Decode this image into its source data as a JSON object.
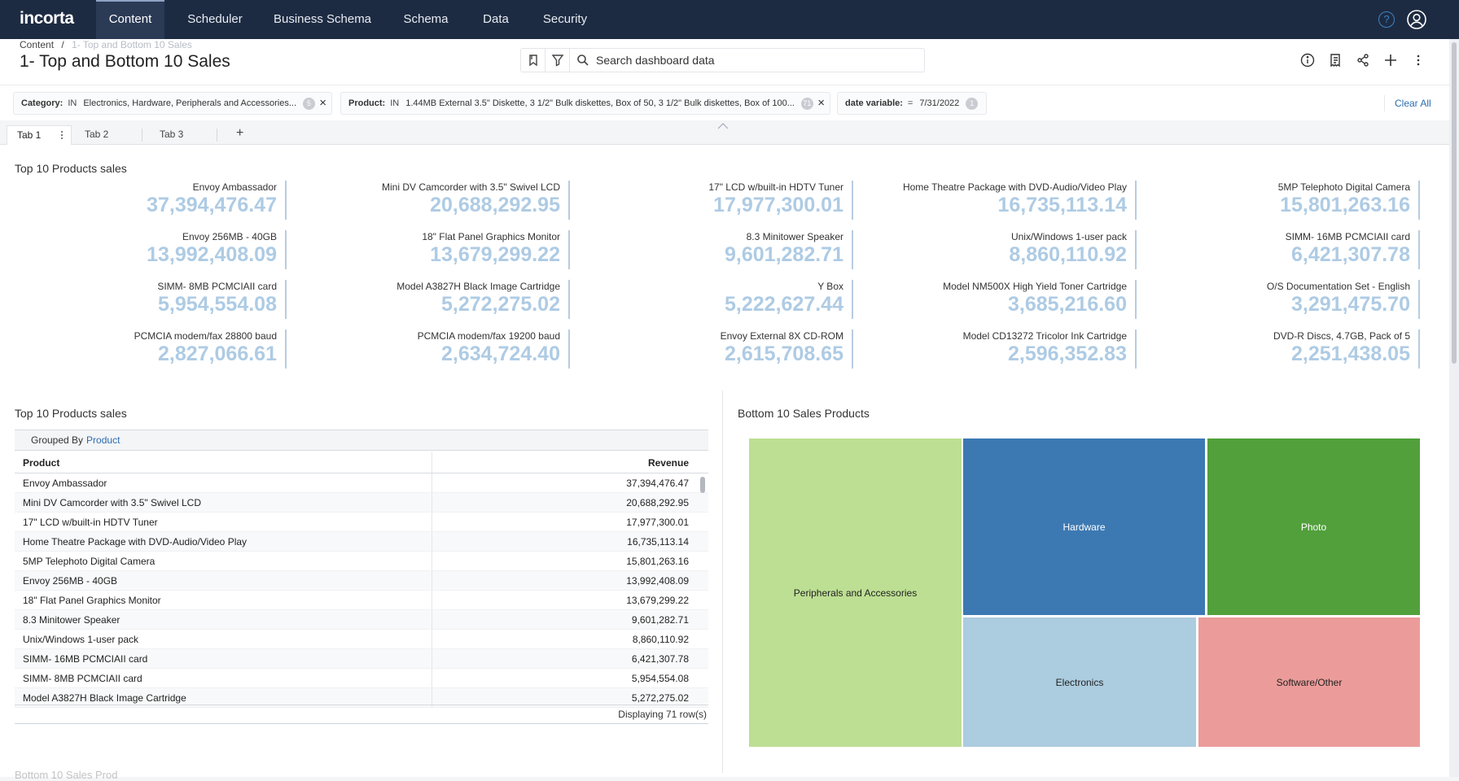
{
  "nav": {
    "logo": "incorta",
    "tabs": [
      "Content",
      "Scheduler",
      "Business Schema",
      "Schema",
      "Data",
      "Security"
    ],
    "active_tab": "Content",
    "help_symbol": "?"
  },
  "header": {
    "breadcrumb_root": "Content",
    "breadcrumb_sep": "/",
    "breadcrumb_current": "1- Top and Bottom 10 Sales",
    "title": "1- Top and Bottom 10 Sales",
    "search_placeholder": "Search dashboard data",
    "toolbar_icons": [
      "info-icon",
      "notes-icon",
      "share-icon",
      "add-icon",
      "more-icon"
    ]
  },
  "filters": [
    {
      "field": "Category:",
      "op": "IN",
      "value": "Electronics, Hardware, Peripherals and Accessories...",
      "count": "5"
    },
    {
      "field": "Product:",
      "op": "IN",
      "value": "1.44MB External 3.5\" Diskette, 3 1/2\" Bulk diskettes, Box of 50, 3 1/2\" Bulk diskettes, Box of 100...",
      "count": "71"
    },
    {
      "field": "date variable:",
      "op": "=",
      "value": "7/31/2022",
      "count": "1"
    }
  ],
  "clear_all": "Clear All",
  "tabs": [
    "Tab 1",
    "Tab 2",
    "Tab 3"
  ],
  "add_tab": "+",
  "kpi_section": {
    "title": "Top 10 Products sales",
    "items": [
      {
        "label": "Envoy Ambassador",
        "value": "37,394,476.47"
      },
      {
        "label": "Mini DV Camcorder with 3.5\" Swivel LCD",
        "value": "20,688,292.95"
      },
      {
        "label": "17\" LCD w/built-in HDTV Tuner",
        "value": "17,977,300.01"
      },
      {
        "label": "Home Theatre Package with DVD-Audio/Video Play",
        "value": "16,735,113.14"
      },
      {
        "label": "5MP Telephoto Digital Camera",
        "value": "15,801,263.16"
      },
      {
        "label": "Envoy 256MB - 40GB",
        "value": "13,992,408.09"
      },
      {
        "label": "18\" Flat Panel Graphics Monitor",
        "value": "13,679,299.22"
      },
      {
        "label": "8.3 Minitower Speaker",
        "value": "9,601,282.71"
      },
      {
        "label": "Unix/Windows 1-user pack",
        "value": "8,860,110.92"
      },
      {
        "label": "SIMM- 16MB PCMCIAII card",
        "value": "6,421,307.78"
      },
      {
        "label": "SIMM- 8MB PCMCIAII card",
        "value": "5,954,554.08"
      },
      {
        "label": "Model A3827H Black Image Cartridge",
        "value": "5,272,275.02"
      },
      {
        "label": "Y Box",
        "value": "5,222,627.44"
      },
      {
        "label": "Model NM500X High Yield Toner Cartridge",
        "value": "3,685,216.60"
      },
      {
        "label": "O/S Documentation Set - English",
        "value": "3,291,475.70"
      },
      {
        "label": "PCMCIA modem/fax 28800 baud",
        "value": "2,827,066.61"
      },
      {
        "label": "PCMCIA modem/fax 19200 baud",
        "value": "2,634,724.40"
      },
      {
        "label": "Envoy External 8X CD-ROM",
        "value": "2,615,708.65"
      },
      {
        "label": "Model CD13272 Tricolor Ink Cartridge",
        "value": "2,596,352.83"
      },
      {
        "label": "DVD-R Discs, 4.7GB, Pack of 5",
        "value": "2,251,438.05"
      }
    ]
  },
  "table_section": {
    "title": "Top 10 Products sales",
    "grouped_by_label": "Grouped By",
    "grouped_by_value": "Product",
    "columns": [
      "Product",
      "Revenue"
    ],
    "rows": [
      [
        "Envoy Ambassador",
        "37,394,476.47"
      ],
      [
        "Mini DV Camcorder with 3.5\" Swivel LCD",
        "20,688,292.95"
      ],
      [
        "17\" LCD w/built-in HDTV Tuner",
        "17,977,300.01"
      ],
      [
        "Home Theatre Package with DVD-Audio/Video Play",
        "16,735,113.14"
      ],
      [
        "5MP Telephoto Digital Camera",
        "15,801,263.16"
      ],
      [
        "Envoy 256MB - 40GB",
        "13,992,408.09"
      ],
      [
        "18\" Flat Panel Graphics Monitor",
        "13,679,299.22"
      ],
      [
        "8.3 Minitower Speaker",
        "9,601,282.71"
      ],
      [
        "Unix/Windows 1-user pack",
        "8,860,110.92"
      ],
      [
        "SIMM- 16MB PCMCIAII card",
        "6,421,307.78"
      ],
      [
        "SIMM- 8MB PCMCIAII card",
        "5,954,554.08"
      ],
      [
        "Model A3827H Black Image Cartridge",
        "5,272,275.02"
      ]
    ],
    "footer": "Displaying 71 row(s)"
  },
  "treemap_section": {
    "title": "Bottom 10 Sales Products",
    "tiles": [
      {
        "label": "Peripherals and Accessories",
        "color": "#bddf93"
      },
      {
        "label": "Hardware",
        "color": "#3c79b3"
      },
      {
        "label": "Photo",
        "color": "#51a03c"
      },
      {
        "label": "Electronics",
        "color": "#acccdf"
      },
      {
        "label": "Software/Other",
        "color": "#eb9c9a"
      }
    ]
  },
  "bottom_peek": "Bottom 10 Sales Prod"
}
